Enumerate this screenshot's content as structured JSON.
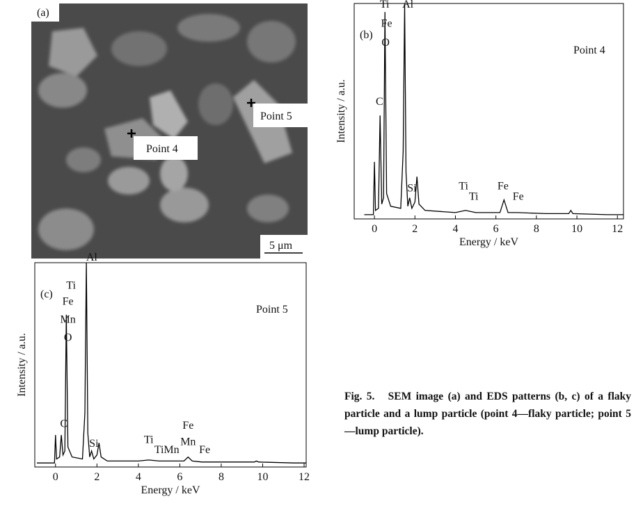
{
  "sem_image": {
    "panel_label": "(a)",
    "point_labels": [
      "Point 4",
      "Point 5"
    ],
    "scale_bar": "5 μm"
  },
  "chart_data": [
    {
      "type": "line",
      "panel_label": "(b)",
      "note": "Point 4",
      "x_label": "Energy / keV",
      "y_label": "Intensity / a.u.",
      "xlim": [
        -1,
        12.3
      ],
      "ylim": [
        -2,
        100
      ],
      "xticks": [
        0,
        2,
        4,
        6,
        8,
        10,
        12
      ],
      "color": "#000000",
      "x": [
        -0.5,
        -0.05,
        0,
        0.05,
        0.2,
        0.28,
        0.36,
        0.45,
        0.52,
        0.6,
        0.8,
        1.3,
        1.42,
        1.49,
        1.56,
        1.65,
        1.74,
        1.85,
        2.0,
        2.1,
        2.2,
        2.5,
        4.0,
        4.5,
        5.0,
        6.2,
        6.4,
        6.6,
        7.06,
        8.5,
        9.6,
        9.7,
        9.8,
        11.5,
        12.3
      ],
      "values": [
        0,
        0,
        25,
        2,
        3,
        47,
        5,
        8,
        96,
        10,
        4,
        3,
        30,
        100,
        20,
        4,
        8,
        3,
        6,
        18,
        5,
        2,
        1,
        2,
        1,
        1,
        7,
        1,
        1,
        0.5,
        0.5,
        2,
        0.5,
        0,
        0
      ],
      "annotations": [
        {
          "text": "Ti",
          "x": 0.5,
          "y": 98
        },
        {
          "text": "Fe",
          "x": 0.6,
          "y": 89
        },
        {
          "text": "O",
          "x": 0.55,
          "y": 80
        },
        {
          "text": "C",
          "x": 0.25,
          "y": 52
        },
        {
          "text": "Al",
          "x": 1.65,
          "y": 98
        },
        {
          "text": "Si",
          "x": 1.85,
          "y": 11
        },
        {
          "text": "Ti",
          "x": 4.4,
          "y": 12
        },
        {
          "text": "Ti",
          "x": 4.9,
          "y": 7
        },
        {
          "text": "Fe",
          "x": 6.35,
          "y": 12
        },
        {
          "text": "Fe",
          "x": 7.1,
          "y": 7
        }
      ]
    },
    {
      "type": "line",
      "panel_label": "(c)",
      "note": "Point 5",
      "x_label": "Energy / keV",
      "y_label": "Intensity / a.u.",
      "xlim": [
        -1,
        12.1
      ],
      "ylim": [
        -2,
        100
      ],
      "xticks": [
        0,
        2,
        4,
        6,
        8,
        10,
        12
      ],
      "color": "#000000",
      "x": [
        -0.9,
        -0.05,
        0,
        0.05,
        0.2,
        0.28,
        0.36,
        0.45,
        0.52,
        0.6,
        0.8,
        1.3,
        1.42,
        1.49,
        1.56,
        1.65,
        1.74,
        1.85,
        2.0,
        2.1,
        2.2,
        2.5,
        4.0,
        4.5,
        5.0,
        6.2,
        6.4,
        6.6,
        7.06,
        8.5,
        9.6,
        9.7,
        9.8,
        11.5,
        12.1
      ],
      "values": [
        0,
        0,
        14,
        2,
        3,
        14,
        4,
        6,
        74,
        8,
        3,
        2,
        25,
        100,
        15,
        3,
        6,
        2,
        4,
        10,
        3,
        1,
        1,
        1.5,
        1,
        1,
        3,
        1,
        0.5,
        0.5,
        0.5,
        1,
        0.5,
        0,
        0
      ],
      "annotations": [
        {
          "text": "Ti",
          "x": 0.75,
          "y": 87
        },
        {
          "text": "Fe",
          "x": 0.6,
          "y": 79
        },
        {
          "text": "Mn",
          "x": 0.6,
          "y": 70
        },
        {
          "text": "O",
          "x": 0.6,
          "y": 61
        },
        {
          "text": "C",
          "x": 0.4,
          "y": 18
        },
        {
          "text": "Al",
          "x": 1.75,
          "y": 101
        },
        {
          "text": "Si",
          "x": 1.85,
          "y": 8
        },
        {
          "text": "Ti",
          "x": 4.5,
          "y": 10
        },
        {
          "text": "Ti",
          "x": 5.0,
          "y": 5
        },
        {
          "text": "Mn",
          "x": 5.6,
          "y": 5
        },
        {
          "text": "Fe",
          "x": 6.4,
          "y": 17
        },
        {
          "text": "Mn",
          "x": 6.4,
          "y": 9
        },
        {
          "text": "Fe",
          "x": 7.2,
          "y": 5
        }
      ]
    }
  ],
  "caption": {
    "label": "Fig. 5.",
    "text": "SEM image (a) and EDS patterns (b, c) of a flaky particle and a lump particle (point 4—flaky particle; point 5—lump particle)."
  }
}
